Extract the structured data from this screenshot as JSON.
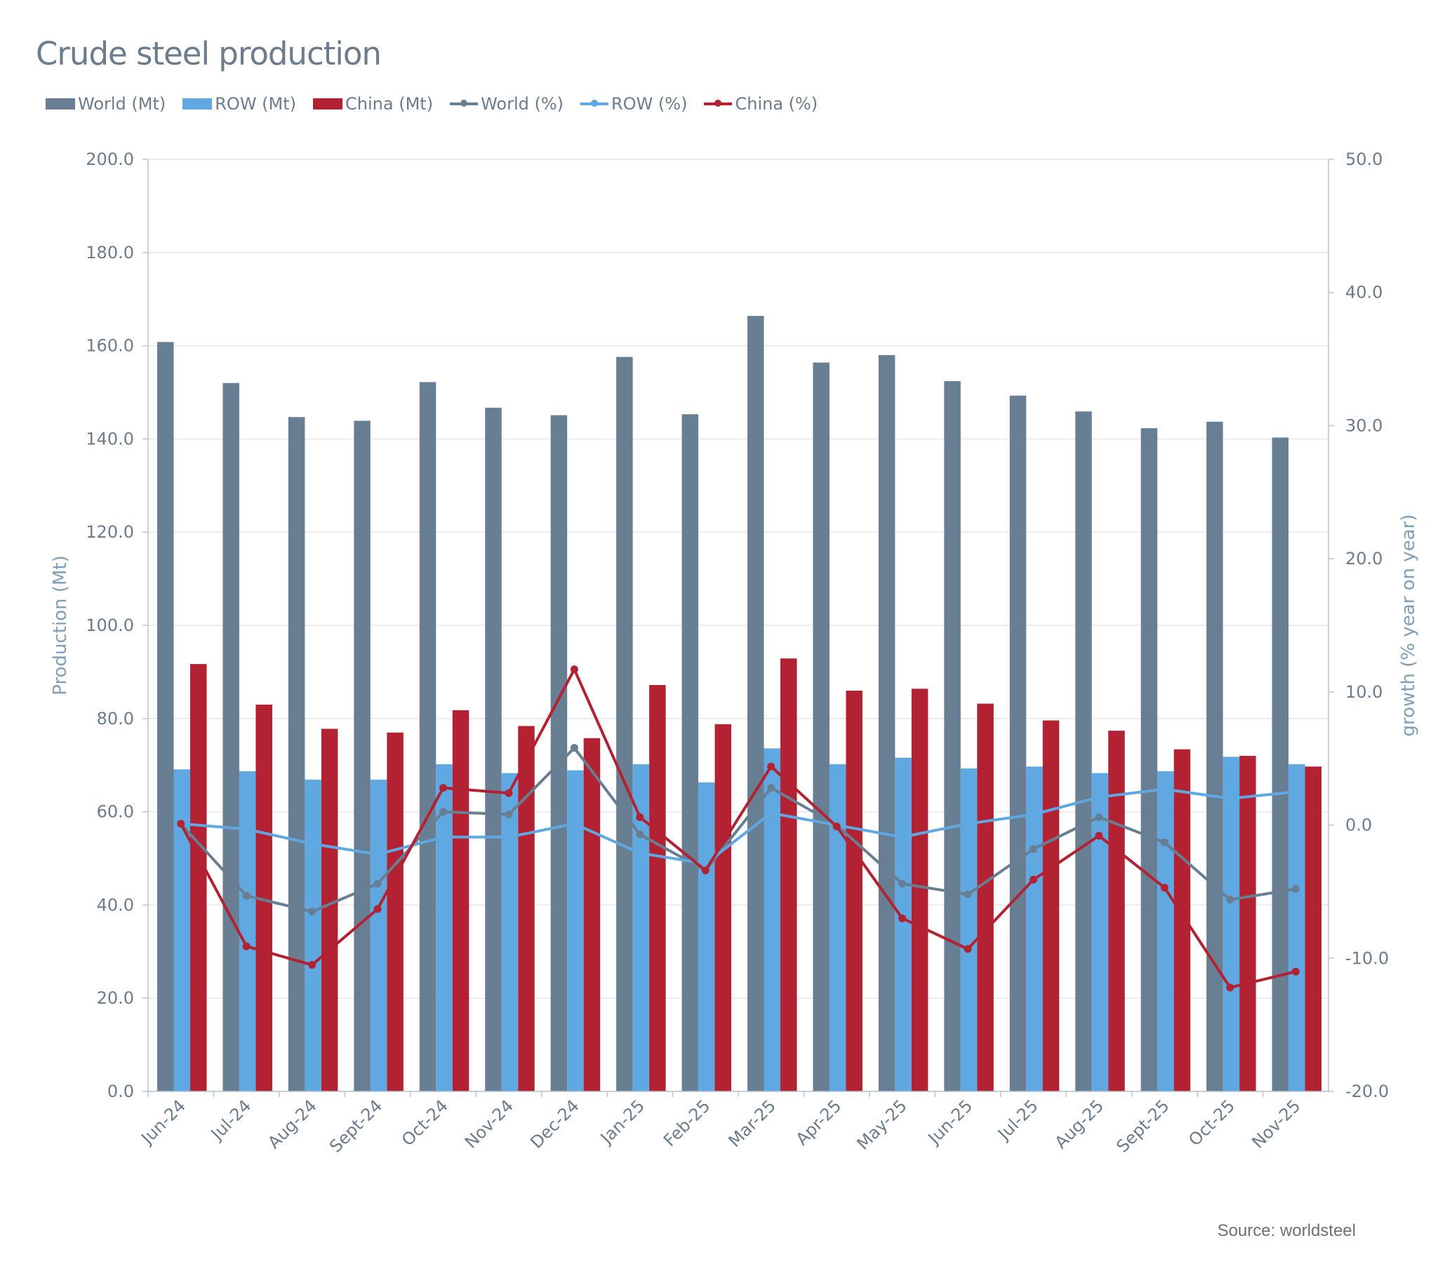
{
  "chart_data": {
    "type": "bar",
    "title": "Crude steel production",
    "categories": [
      "Jun-24",
      "Jul-24",
      "Aug-24",
      "Sept-24",
      "Oct-24",
      "Nov-24",
      "Dec-24",
      "Jan-25",
      "Feb-25",
      "Mar-25",
      "Apr-25",
      "May-25",
      "Jun-25",
      "Jul-25",
      "Aug-25",
      "Sept-25",
      "Oct-25",
      "Nov-25"
    ],
    "ylabel": "Production (Mt)",
    "y2label": "growth (% year on year)",
    "ylim": [
      0,
      200
    ],
    "y2lim": [
      -20,
      50
    ],
    "yticks": [
      "0.0",
      "20.0",
      "40.0",
      "60.0",
      "80.0",
      "100.0",
      "120.0",
      "140.0",
      "160.0",
      "180.0",
      "200.0"
    ],
    "y2ticks": [
      "-20.0",
      "-10.0",
      "0.0",
      "10.0",
      "20.0",
      "30.0",
      "40.0",
      "50.0"
    ],
    "grid": true,
    "legend": "top-left",
    "series": [
      {
        "name": "World (Mt)",
        "type": "bar",
        "axis": "left",
        "color": "#687f93",
        "values": [
          160.8,
          152.0,
          144.7,
          143.9,
          152.2,
          146.7,
          145.1,
          157.6,
          145.3,
          166.4,
          156.4,
          158.0,
          152.4,
          149.3,
          145.9,
          142.3,
          143.7,
          140.3
        ]
      },
      {
        "name": "ROW (Mt)",
        "type": "bar",
        "axis": "left",
        "color": "#5fa8e2",
        "values": [
          69.1,
          68.7,
          66.9,
          66.9,
          70.2,
          68.3,
          68.9,
          70.2,
          66.3,
          73.6,
          70.2,
          71.6,
          69.3,
          69.7,
          68.3,
          68.7,
          71.8,
          70.2
        ]
      },
      {
        "name": "China (Mt)",
        "type": "bar",
        "axis": "left",
        "color": "#b22232",
        "values": [
          91.7,
          83.0,
          77.8,
          77.0,
          81.8,
          78.4,
          75.8,
          87.2,
          78.8,
          92.9,
          86.0,
          86.4,
          83.2,
          79.6,
          77.4,
          73.4,
          72.0,
          69.7
        ]
      },
      {
        "name": "World (%)",
        "type": "line",
        "axis": "right",
        "color": "#687f93",
        "values": [
          0.1,
          -5.3,
          -6.5,
          -4.4,
          1.0,
          0.8,
          5.8,
          -0.7,
          -3.4,
          2.8,
          0.0,
          -4.4,
          -5.2,
          -1.8,
          0.6,
          -1.3,
          -5.6,
          -4.8
        ]
      },
      {
        "name": "ROW (%)",
        "type": "line",
        "axis": "right",
        "color": "#5fa8e2",
        "values": [
          0.1,
          -0.3,
          -1.4,
          -2.2,
          -0.9,
          -0.9,
          0.1,
          -2.1,
          -2.9,
          0.9,
          0.0,
          -0.9,
          0.1,
          0.8,
          2.1,
          2.7,
          2.0,
          2.5
        ]
      },
      {
        "name": "China (%)",
        "type": "line",
        "axis": "right",
        "color": "#b22232",
        "values": [
          0.1,
          -9.1,
          -10.5,
          -6.3,
          2.8,
          2.4,
          11.7,
          0.6,
          -3.4,
          4.4,
          -0.1,
          -7.0,
          -9.3,
          -4.1,
          -0.8,
          -4.7,
          -12.2,
          -11.0
        ]
      }
    ],
    "source": "Source: worldsteel"
  }
}
